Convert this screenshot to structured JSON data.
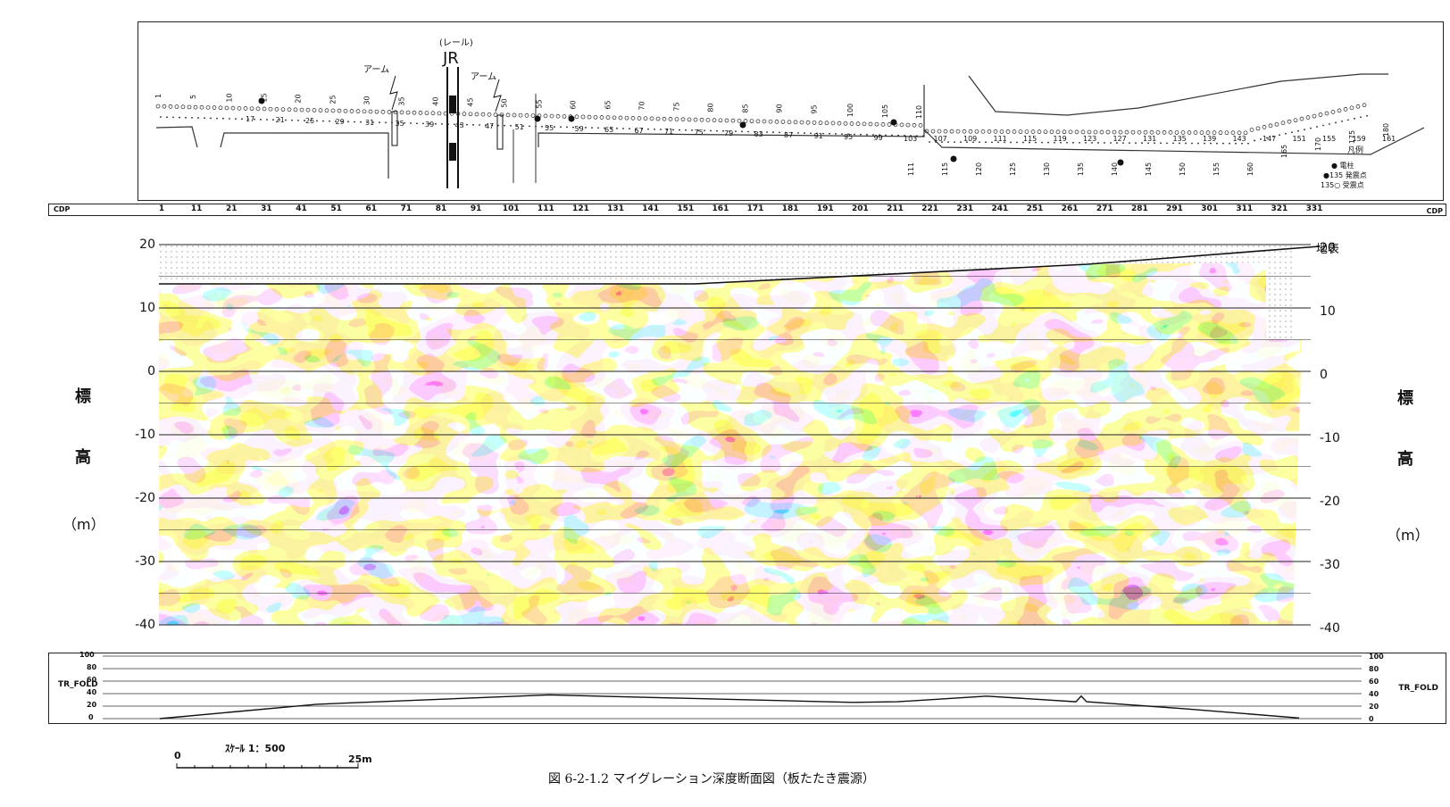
{
  "map": {
    "rail_label": "(レール)",
    "jr_label": "JR",
    "arm_label_left": "アーム",
    "arm_label_right": "アーム",
    "top_numbers": [
      "1",
      "5",
      "10",
      "15",
      "20",
      "25",
      "30",
      "35",
      "40",
      "45",
      "50",
      "55",
      "60",
      "65",
      "70",
      "75",
      "80",
      "85",
      "90",
      "95",
      "100",
      "105",
      "110"
    ],
    "mid_numbers": [
      "17",
      "21",
      "25",
      "29",
      "31",
      "35",
      "39",
      "43",
      "47",
      "51",
      "55",
      "59",
      "63",
      "67",
      "71",
      "75",
      "79",
      "83",
      "87",
      "91",
      "95",
      "99",
      "103",
      "107",
      "109",
      "111",
      "115",
      "119",
      "123",
      "127",
      "131",
      "135",
      "139",
      "143",
      "147",
      "151",
      "155",
      "159",
      "161"
    ],
    "lower_numbers": [
      "111",
      "115",
      "120",
      "125",
      "130",
      "135",
      "140",
      "145",
      "150",
      "155",
      "160",
      "165",
      "170",
      "175",
      "180"
    ],
    "legend": {
      "title": "凡例",
      "pole": "電柱",
      "shot": "発震点",
      "shot_sample": "●135",
      "receiver": "受震点",
      "receiver_sample": "135○"
    }
  },
  "cdp": {
    "label": "CDP",
    "ticks": [
      "1",
      "11",
      "21",
      "31",
      "41",
      "51",
      "61",
      "71",
      "81",
      "91",
      "101",
      "111",
      "121",
      "131",
      "141",
      "151",
      "161",
      "171",
      "181",
      "191",
      "201",
      "211",
      "221",
      "231",
      "241",
      "251",
      "261",
      "271",
      "281",
      "291",
      "301",
      "311",
      "321",
      "331"
    ]
  },
  "section": {
    "y_ticks": [
      "20",
      "10",
      "0",
      "-10",
      "-20",
      "-30",
      "-40"
    ],
    "y_values": [
      20,
      10,
      0,
      -10,
      -20,
      -30,
      -40
    ],
    "vertical_label": [
      "標",
      "高",
      "（m）"
    ],
    "surface_label": "地表",
    "colors": {
      "red": "#d8341f",
      "orange": "#f39a2a",
      "yellow": "#f7e35c",
      "light_blue": "#8fb9de",
      "blue": "#1f4fa0",
      "white": "#ffffff"
    }
  },
  "fold": {
    "label": "TR_FOLD",
    "ticks": [
      "100",
      "80",
      "60",
      "40",
      "20",
      "0"
    ],
    "tick_values": [
      100,
      80,
      60,
      40,
      20,
      0
    ]
  },
  "scale": {
    "label": "ｽｹｰﾙ  1：500",
    "start": "0",
    "end": "25m"
  },
  "caption": "図 6-2-1.2  マイグレーション深度断面図（板たたき震源）"
}
